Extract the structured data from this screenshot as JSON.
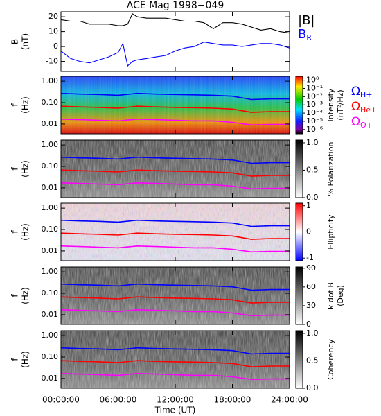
{
  "chart_data": {
    "title": "ACE Mag 1998−049",
    "x_label": "Time (UT)",
    "xlim": [
      0,
      24
    ],
    "xticks": [
      {
        "value": 0,
        "label": "00:00:00"
      },
      {
        "value": 6,
        "label": "06:00:00"
      },
      {
        "value": 12,
        "label": "12:00:00"
      },
      {
        "value": 18,
        "label": "18:00:00"
      },
      {
        "value": 24,
        "label": "24:00:00"
      }
    ],
    "panels": [
      {
        "type": "line",
        "ylabel": [
          "B",
          "(nT)"
        ],
        "ylim": [
          -16.7,
          23.3
        ],
        "yticks": [
          -10,
          0,
          10,
          20
        ],
        "x": [
          0,
          1,
          2,
          3,
          4,
          5,
          6,
          6.5,
          7,
          7.5,
          8,
          9,
          10,
          11,
          12,
          13,
          14,
          15,
          16,
          17,
          18,
          19,
          20,
          21,
          22,
          23,
          24
        ],
        "series": [
          {
            "name": "|B|",
            "color": "#000000",
            "values": [
              18,
              17,
              17,
              15,
              15,
              15,
              14,
              14,
              15,
              22,
              20,
              19,
              19,
              19,
              18,
              17,
              17,
              16,
              12,
              16,
              16,
              15,
              13,
              11,
              12,
              10,
              9
            ]
          },
          {
            "name": "B",
            "subscript": "R",
            "color": "#0000ff",
            "values": [
              -3,
              -8,
              -10,
              -11,
              -9,
              -7,
              -4,
              2,
              -13,
              -10,
              -9,
              -8,
              -7,
              -6,
              -3,
              -1,
              0,
              3,
              2,
              1,
              1,
              0,
              1,
              2,
              2,
              1,
              -1
            ]
          }
        ]
      },
      {
        "type": "spectrogram",
        "colormap": "rainbow",
        "ylabel": [
          "f",
          "(Hz)"
        ],
        "log": true,
        "ylim": [
          0.0035,
          1.7
        ],
        "yticks": [
          {
            "value": 1,
            "label": "1.00"
          },
          {
            "value": 0.1,
            "label": "0.10"
          },
          {
            "value": 0.01,
            "label": "0.01"
          }
        ],
        "colorbar": {
          "label": [
            "Intensity",
            "(nT²/Hz)"
          ],
          "log": true,
          "clim": [
            3e-07,
            3
          ],
          "ticks": [
            {
              "value": 1,
              "label": "10⁰"
            },
            {
              "value": 0.1,
              "label": "10⁻¹"
            },
            {
              "value": 0.01,
              "label": "10⁻²"
            },
            {
              "value": 0.001,
              "label": "10⁻³"
            },
            {
              "value": 0.0001,
              "label": "10⁻⁴"
            },
            {
              "value": 1e-05,
              "label": "10⁻⁵"
            },
            {
              "value": 1e-06,
              "label": "10⁻⁶"
            }
          ]
        },
        "show_gyro_legend": true
      },
      {
        "type": "spectrogram",
        "colormap": "gray",
        "ylabel": [
          "f",
          "(Hz)"
        ],
        "log": true,
        "ylim": [
          0.0035,
          1.7
        ],
        "yticks": [
          {
            "value": 1,
            "label": "1.00"
          },
          {
            "value": 0.1,
            "label": "0.10"
          },
          {
            "value": 0.01,
            "label": "0.01"
          }
        ],
        "colorbar": {
          "label": [
            "% Polarization"
          ],
          "log": false,
          "clim": [
            0,
            1.05
          ],
          "ticks": [
            {
              "value": 0,
              "label": "0.0"
            },
            0.5,
            {
              "value": 1,
              "label": "1.0"
            }
          ]
        }
      },
      {
        "type": "spectrogram",
        "colormap": "bwr",
        "ylabel": [
          "f",
          "(Hz)"
        ],
        "log": true,
        "ylim": [
          0.0035,
          1.7
        ],
        "yticks": [
          {
            "value": 1,
            "label": "1.00"
          },
          {
            "value": 0.1,
            "label": "0.10"
          },
          {
            "value": 0.01,
            "label": "0.01"
          }
        ],
        "colorbar": {
          "label": [
            "Ellipticity"
          ],
          "log": false,
          "clim": [
            -1.1,
            1.1
          ],
          "ticks": [
            -1,
            0,
            1
          ]
        }
      },
      {
        "type": "spectrogram",
        "colormap": "gray",
        "ylabel": [
          "f",
          "(Hz)"
        ],
        "log": true,
        "ylim": [
          0.0035,
          1.7
        ],
        "yticks": [
          {
            "value": 1,
            "label": "1.00"
          },
          {
            "value": 0.1,
            "label": "0.10"
          },
          {
            "value": 0.01,
            "label": "0.01"
          }
        ],
        "colorbar": {
          "label": [
            "k dot B",
            "(Deg)"
          ],
          "log": false,
          "clim": [
            0,
            92
          ],
          "ticks": [
            0,
            30,
            60,
            90
          ]
        }
      },
      {
        "type": "spectrogram",
        "colormap": "gray",
        "ylabel": [
          "f",
          "(Hz)"
        ],
        "log": true,
        "ylim": [
          0.0035,
          1.7
        ],
        "yticks": [
          {
            "value": 1,
            "label": "1.00"
          },
          {
            "value": 0.1,
            "label": "0.10"
          },
          {
            "value": 0.01,
            "label": "0.01"
          }
        ],
        "colorbar": {
          "label": [
            "Coherency"
          ],
          "log": false,
          "clim": [
            0,
            1.05
          ],
          "ticks": [
            {
              "value": 0,
              "label": "0.0"
            },
            0.5,
            {
              "value": 1,
              "label": "1.0"
            }
          ]
        }
      }
    ],
    "gyro": {
      "x": [
        0,
        2,
        4,
        6,
        8,
        10,
        12,
        14,
        16,
        18,
        20,
        22,
        24
      ],
      "series": [
        {
          "name": "Ω",
          "subscript": "H+",
          "color": "#0000ff",
          "values": [
            0.27,
            0.25,
            0.24,
            0.22,
            0.27,
            0.25,
            0.24,
            0.23,
            0.22,
            0.2,
            0.14,
            0.15,
            0.15
          ]
        },
        {
          "name": "Ω",
          "subscript": "He+",
          "color": "#ff0000",
          "values": [
            0.068,
            0.063,
            0.06,
            0.055,
            0.068,
            0.063,
            0.06,
            0.058,
            0.055,
            0.05,
            0.035,
            0.038,
            0.038
          ]
        },
        {
          "name": "Ω",
          "subscript": "O+",
          "color": "#ff00ff",
          "values": [
            0.017,
            0.016,
            0.015,
            0.014,
            0.017,
            0.016,
            0.015,
            0.014,
            0.014,
            0.012,
            0.009,
            0.0095,
            0.0095
          ]
        }
      ]
    }
  }
}
